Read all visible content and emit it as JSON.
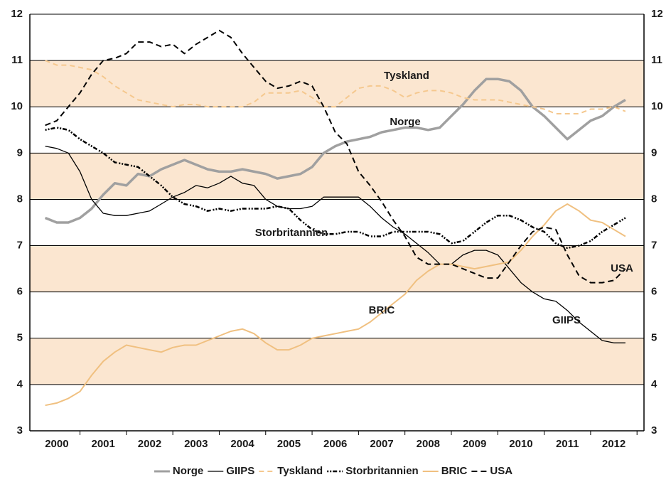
{
  "chart_data": {
    "type": "line",
    "x": [
      2000.25,
      2000.5,
      2000.75,
      2001,
      2001.25,
      2001.5,
      2001.75,
      2002,
      2002.25,
      2002.5,
      2002.75,
      2003,
      2003.25,
      2003.5,
      2003.75,
      2004,
      2004.25,
      2004.5,
      2004.75,
      2005,
      2005.25,
      2005.5,
      2005.75,
      2006,
      2006.25,
      2006.5,
      2006.75,
      2007,
      2007.25,
      2007.5,
      2007.75,
      2008,
      2008.25,
      2008.5,
      2008.75,
      2009,
      2009.25,
      2009.5,
      2009.75,
      2010,
      2010.25,
      2010.5,
      2010.75,
      2011,
      2011.25,
      2011.5,
      2011.75,
      2012,
      2012.25,
      2012.5,
      2012.75
    ],
    "xlim": [
      1999.92,
      2013.15
    ],
    "xticks": [
      {
        "value": 2000.5,
        "label": "2000"
      },
      {
        "value": 2001.5,
        "label": "2001"
      },
      {
        "value": 2002.5,
        "label": "2002"
      },
      {
        "value": 2003.5,
        "label": "2003"
      },
      {
        "value": 2004.5,
        "label": "2004"
      },
      {
        "value": 2005.5,
        "label": "2005"
      },
      {
        "value": 2006.5,
        "label": "2006"
      },
      {
        "value": 2007.5,
        "label": "2007"
      },
      {
        "value": 2008.5,
        "label": "2008"
      },
      {
        "value": 2009.5,
        "label": "2009"
      },
      {
        "value": 2010.5,
        "label": "2010"
      },
      {
        "value": 2011.5,
        "label": "2011"
      },
      {
        "value": 2012.5,
        "label": "2012"
      }
    ],
    "ylim": [
      3,
      12
    ],
    "yticks": [
      3,
      4,
      5,
      6,
      7,
      8,
      9,
      10,
      11,
      12
    ],
    "y2lim": [
      3,
      12
    ],
    "y2ticks": [
      3,
      4,
      5,
      6,
      7,
      8,
      9,
      10,
      11,
      12
    ],
    "grid": true,
    "series": [
      {
        "name": "Norge",
        "color": "#a0a0a0",
        "values": [
          7.6,
          7.5,
          7.5,
          7.6,
          7.8,
          8.1,
          8.35,
          8.3,
          8.55,
          8.5,
          8.65,
          8.75,
          8.85,
          8.75,
          8.65,
          8.6,
          8.6,
          8.65,
          8.6,
          8.55,
          8.45,
          8.5,
          8.55,
          8.7,
          9.0,
          9.15,
          9.25,
          9.3,
          9.35,
          9.45,
          9.5,
          9.55,
          9.55,
          9.5,
          9.55,
          9.8,
          10.05,
          10.35,
          10.6,
          10.6,
          10.55,
          10.35,
          10.0,
          9.8,
          9.55,
          9.3,
          9.5,
          9.7,
          9.8,
          10.0,
          10.15
        ]
      },
      {
        "name": "GIIPS",
        "color": "#000000",
        "values": [
          9.15,
          9.1,
          9.0,
          8.6,
          8.0,
          7.7,
          7.65,
          7.65,
          7.7,
          7.75,
          7.9,
          8.05,
          8.15,
          8.3,
          8.25,
          8.35,
          8.5,
          8.35,
          8.3,
          8.0,
          7.85,
          7.8,
          7.8,
          7.85,
          8.05,
          8.05,
          8.05,
          8.05,
          7.85,
          7.6,
          7.4,
          7.25,
          7.05,
          6.85,
          6.6,
          6.6,
          6.8,
          6.9,
          6.9,
          6.8,
          6.5,
          6.2,
          6.0,
          5.85,
          5.8,
          5.6,
          5.35,
          5.15,
          4.95,
          4.9,
          4.9
        ]
      },
      {
        "name": "Tyskland",
        "color": "#f5c88e",
        "values": [
          11.0,
          10.9,
          10.9,
          10.85,
          10.8,
          10.65,
          10.45,
          10.3,
          10.15,
          10.1,
          10.05,
          10.0,
          10.05,
          10.05,
          10.0,
          10.0,
          10.0,
          10.0,
          10.1,
          10.3,
          10.3,
          10.3,
          10.35,
          10.2,
          10.0,
          10.0,
          10.2,
          10.4,
          10.45,
          10.45,
          10.35,
          10.2,
          10.3,
          10.35,
          10.35,
          10.3,
          10.2,
          10.15,
          10.15,
          10.15,
          10.1,
          10.05,
          10.0,
          9.95,
          9.85,
          9.85,
          9.85,
          9.95,
          9.95,
          10.0,
          9.9
        ]
      },
      {
        "name": "Storbritannien",
        "color": "#000000",
        "values": [
          9.5,
          9.55,
          9.5,
          9.3,
          9.15,
          9.0,
          8.8,
          8.75,
          8.7,
          8.5,
          8.3,
          8.05,
          7.9,
          7.85,
          7.75,
          7.8,
          7.75,
          7.8,
          7.8,
          7.8,
          7.85,
          7.8,
          7.55,
          7.35,
          7.25,
          7.25,
          7.3,
          7.3,
          7.2,
          7.2,
          7.3,
          7.3,
          7.3,
          7.3,
          7.25,
          7.05,
          7.1,
          7.3,
          7.5,
          7.65,
          7.65,
          7.55,
          7.4,
          7.3,
          7.05,
          6.95,
          7.0,
          7.1,
          7.3,
          7.45,
          7.6
        ]
      },
      {
        "name": "BRIC",
        "color": "#f0c080",
        "values": [
          3.55,
          3.6,
          3.7,
          3.85,
          4.2,
          4.5,
          4.7,
          4.85,
          4.8,
          4.75,
          4.7,
          4.8,
          4.85,
          4.85,
          4.95,
          5.05,
          5.15,
          5.2,
          5.1,
          4.9,
          4.75,
          4.75,
          4.85,
          5.0,
          5.05,
          5.1,
          5.15,
          5.2,
          5.35,
          5.55,
          5.75,
          5.95,
          6.25,
          6.45,
          6.6,
          6.6,
          6.55,
          6.5,
          6.55,
          6.6,
          6.65,
          6.9,
          7.2,
          7.45,
          7.75,
          7.9,
          7.75,
          7.55,
          7.5,
          7.35,
          7.2
        ]
      },
      {
        "name": "USA",
        "color": "#000000",
        "values": [
          9.6,
          9.7,
          10.0,
          10.3,
          10.7,
          11.0,
          11.05,
          11.15,
          11.4,
          11.4,
          11.3,
          11.35,
          11.15,
          11.35,
          11.5,
          11.65,
          11.5,
          11.15,
          10.85,
          10.55,
          10.4,
          10.45,
          10.55,
          10.45,
          10.0,
          9.45,
          9.2,
          8.6,
          8.3,
          7.95,
          7.55,
          7.2,
          6.75,
          6.6,
          6.6,
          6.6,
          6.5,
          6.4,
          6.3,
          6.3,
          6.65,
          7.0,
          7.3,
          7.4,
          7.35,
          6.8,
          6.35,
          6.2,
          6.2,
          6.25,
          6.5
        ]
      }
    ],
    "annotations": [
      "Tyskland",
      "Norge",
      "Storbritannien",
      "USA",
      "BRIC",
      "GIIPS"
    ]
  }
}
